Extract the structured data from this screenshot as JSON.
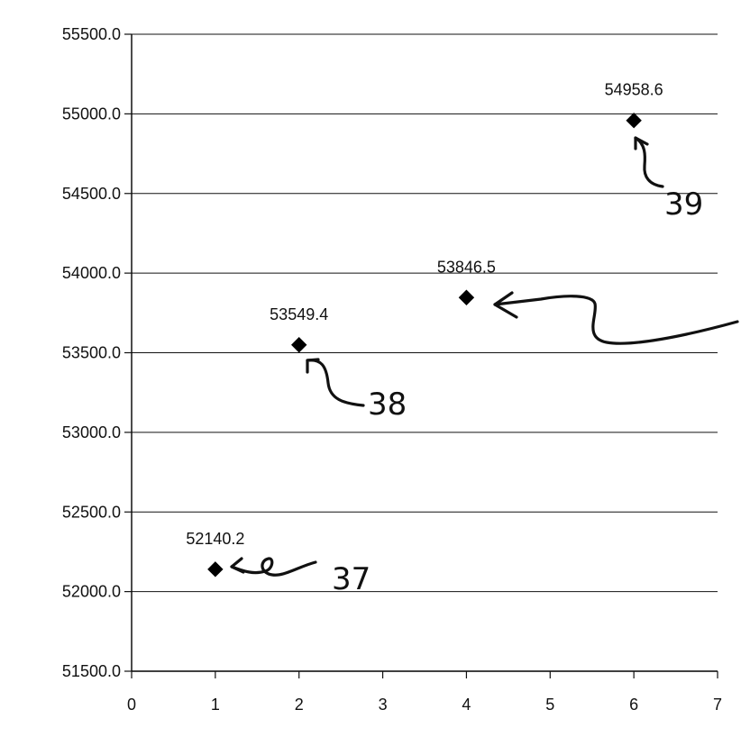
{
  "chart_data": {
    "type": "scatter",
    "title": "",
    "xlabel": "",
    "ylabel": "",
    "x": [
      1,
      2,
      4,
      6
    ],
    "y": [
      52140.2,
      53549.4,
      53846.5,
      54958.6
    ],
    "data_labels": [
      "52140.2",
      "53549.4",
      "53846.5",
      "54958.6"
    ],
    "xlim": [
      0,
      7
    ],
    "ylim": [
      51500,
      55500
    ],
    "x_ticks": [
      0,
      1,
      2,
      3,
      4,
      5,
      6,
      7
    ],
    "y_ticks": [
      51500,
      52000,
      52500,
      53000,
      53500,
      54000,
      54500,
      55000,
      55500
    ],
    "x_tick_labels": [
      "0",
      "1",
      "2",
      "3",
      "4",
      "5",
      "6",
      "7"
    ],
    "y_tick_labels": [
      "51500.0",
      "52000.0",
      "52500.0",
      "53000.0",
      "53500.0",
      "54000.0",
      "54500.0",
      "55000.0",
      "55500.0"
    ],
    "grid": "horizontal",
    "marker": "diamond",
    "marker_color": "#000000",
    "annotations": [
      {
        "text": "37",
        "points_to_x": 1
      },
      {
        "text": "38",
        "points_to_x": 2
      },
      {
        "text": "39",
        "points_to_x": 6
      }
    ]
  }
}
